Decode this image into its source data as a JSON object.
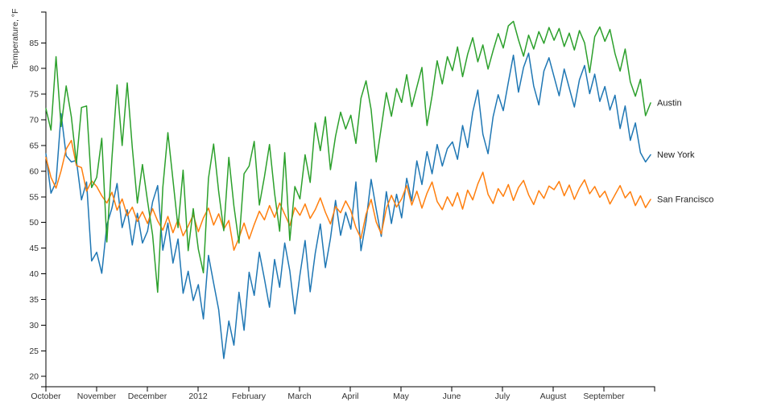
{
  "chart_data": {
    "type": "line",
    "title": "",
    "ylabel": "Temperature, °F",
    "xlabel": "",
    "grid": false,
    "legend_position": "line-end-labels",
    "ylim": [
      18,
      91
    ],
    "y_ticks": [
      20,
      25,
      30,
      35,
      40,
      45,
      50,
      55,
      60,
      65,
      70,
      75,
      80,
      85
    ],
    "x_tick_labels": [
      "October",
      "November",
      "December",
      "2012",
      "February",
      "March",
      "April",
      "May",
      "June",
      "July",
      "August",
      "September"
    ],
    "x_range_note": "daily temperatures Oct 1 through Sep 28, sampled every ~3 days",
    "series": [
      {
        "name": "New York",
        "color": "#1f77b4",
        "values": [
          63.4,
          55.7,
          57.9,
          71.2,
          63.0,
          61.8,
          62.1,
          54.4,
          57.9,
          42.5,
          44.2,
          40.1,
          49.5,
          52.8,
          57.6,
          49.0,
          52.5,
          45.6,
          51.8,
          46.0,
          48.3,
          54.0,
          57.2,
          44.6,
          49.9,
          42.1,
          46.8,
          36.2,
          40.5,
          34.8,
          37.9,
          31.2,
          43.6,
          38.2,
          33.0,
          23.5,
          30.8,
          26.1,
          36.4,
          29.0,
          40.3,
          35.8,
          44.2,
          39.0,
          33.5,
          42.8,
          37.4,
          46.0,
          40.6,
          32.2,
          39.8,
          46.5,
          36.5,
          44.0,
          49.7,
          41.2,
          46.9,
          54.3,
          47.5,
          52.0,
          48.7,
          57.9,
          44.5,
          50.2,
          58.4,
          52.6,
          47.3,
          56.0,
          49.8,
          55.5,
          50.9,
          58.6,
          54.2,
          62.0,
          57.4,
          63.8,
          59.5,
          65.2,
          61.0,
          64.4,
          65.7,
          62.3,
          68.9,
          64.6,
          71.5,
          75.8,
          67.2,
          63.4,
          70.6,
          74.9,
          71.8,
          77.3,
          82.6,
          75.4,
          80.2,
          83.0,
          76.6,
          72.9,
          79.5,
          82.1,
          78.4,
          74.7,
          79.9,
          76.2,
          72.5,
          77.8,
          80.6,
          75.1,
          78.9,
          73.6,
          76.5,
          71.9,
          74.8,
          68.3,
          72.7,
          66.0,
          69.4,
          63.6,
          61.8,
          63.2
        ]
      },
      {
        "name": "San Francisco",
        "color": "#ff7f0e",
        "values": [
          62.7,
          58.8,
          56.7,
          60.1,
          64.3,
          66.0,
          61.1,
          60.7,
          56.1,
          58.1,
          57.0,
          55.2,
          53.8,
          55.9,
          52.4,
          54.6,
          51.3,
          53.0,
          50.2,
          52.1,
          49.8,
          52.7,
          50.3,
          48.5,
          51.2,
          48.0,
          50.6,
          47.4,
          49.3,
          51.5,
          48.2,
          50.9,
          52.8,
          49.5,
          51.7,
          48.7,
          50.4,
          44.6,
          47.0,
          49.9,
          46.8,
          49.6,
          52.2,
          50.5,
          53.3,
          51.0,
          53.8,
          51.6,
          49.4,
          52.9,
          51.4,
          53.6,
          50.8,
          52.5,
          54.8,
          52.0,
          49.7,
          53.1,
          51.9,
          54.2,
          52.3,
          49.0,
          46.9,
          51.6,
          54.5,
          50.1,
          47.8,
          52.7,
          55.3,
          53.0,
          54.6,
          57.2,
          53.4,
          56.1,
          52.8,
          55.7,
          57.9,
          54.1,
          52.5,
          55.0,
          53.2,
          55.8,
          52.6,
          56.3,
          54.4,
          57.5,
          59.8,
          55.5,
          53.7,
          56.6,
          55.1,
          57.4,
          54.3,
          56.8,
          58.2,
          55.4,
          53.5,
          56.2,
          54.7,
          57.1,
          56.4,
          58.0,
          55.2,
          57.3,
          54.5,
          56.7,
          58.3,
          55.6,
          57.0,
          54.9,
          56.1,
          53.6,
          55.4,
          57.2,
          54.8,
          56.0,
          53.3,
          55.2,
          52.9,
          54.5
        ]
      },
      {
        "name": "Austin",
        "color": "#2ca02c",
        "values": [
          72.2,
          68.0,
          82.3,
          68.7,
          76.6,
          70.6,
          61.6,
          72.4,
          72.7,
          56.8,
          58.8,
          66.4,
          46.2,
          62.5,
          76.8,
          65.0,
          77.2,
          64.6,
          53.8,
          61.3,
          54.2,
          47.6,
          36.4,
          56.8,
          67.5,
          58.3,
          49.0,
          60.2,
          44.5,
          52.7,
          44.8,
          40.2,
          58.6,
          65.3,
          56.0,
          48.4,
          62.7,
          53.2,
          46.0,
          59.5,
          61.0,
          65.8,
          53.4,
          58.9,
          65.2,
          55.7,
          48.3,
          63.6,
          46.5,
          57.0,
          54.6,
          63.2,
          57.8,
          69.4,
          64.0,
          70.6,
          60.3,
          66.8,
          71.5,
          68.2,
          70.9,
          65.4,
          74.2,
          77.6,
          72.0,
          61.8,
          68.5,
          75.3,
          70.7,
          76.1,
          73.4,
          78.8,
          72.6,
          76.4,
          80.2,
          68.9,
          74.7,
          81.5,
          77.0,
          82.3,
          79.6,
          84.2,
          78.4,
          82.8,
          86.0,
          81.3,
          84.6,
          79.9,
          83.5,
          86.8,
          84.0,
          88.3,
          89.2,
          85.6,
          82.4,
          86.5,
          83.8,
          87.2,
          84.9,
          88.0,
          85.5,
          87.8,
          84.3,
          86.9,
          83.6,
          87.4,
          85.0,
          79.2,
          86.2,
          88.1,
          85.3,
          87.6,
          82.9,
          79.5,
          83.8,
          77.4,
          74.6,
          77.9,
          70.8,
          73.3
        ]
      }
    ]
  }
}
